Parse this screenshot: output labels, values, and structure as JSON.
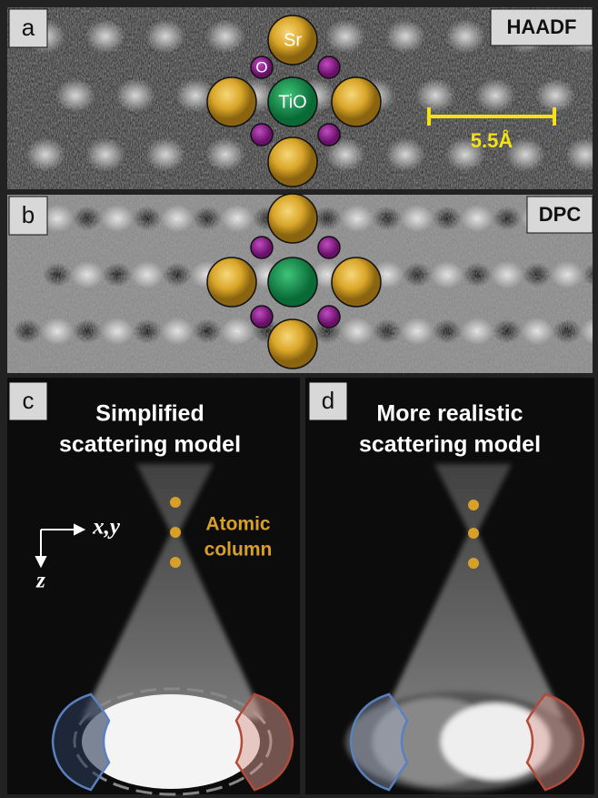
{
  "panels": [
    {
      "label": "a",
      "title": "HAADF",
      "atom_labels": {
        "sr": "Sr",
        "o": "O",
        "tio": "TiO"
      },
      "scale_bar": "5.5Å"
    },
    {
      "label": "b",
      "title": "DPC"
    },
    {
      "label": "c",
      "title_lines": [
        "Simplified",
        "scattering model"
      ],
      "axes": {
        "x": "x,y",
        "z": "z"
      },
      "annotation_lines": [
        "Atomic",
        "column"
      ]
    },
    {
      "label": "d",
      "title_lines": [
        "More realistic",
        "scattering model"
      ]
    }
  ]
}
